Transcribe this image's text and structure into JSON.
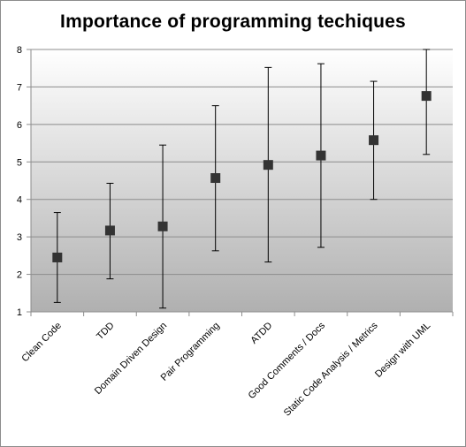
{
  "chart_data": {
    "type": "scatter",
    "title": "Importance of programming techiques",
    "xlabel": "",
    "ylabel": "",
    "categories": [
      "Clean Code",
      "TDD",
      "Domain Driven Design",
      "Pair Programming",
      "ATDD",
      "Good Comments  / Docs",
      "Static Code Analysis / Metrics",
      "Design with UML"
    ],
    "series": [
      {
        "values": [
          2.45,
          3.17,
          3.28,
          4.57,
          4.92,
          5.17,
          5.58,
          6.76
        ],
        "error_low": [
          1.25,
          1.88,
          1.1,
          2.63,
          2.33,
          2.72,
          4.0,
          5.2
        ],
        "error_high": [
          3.65,
          4.43,
          5.45,
          6.5,
          7.52,
          7.62,
          7.15,
          8.0
        ]
      }
    ],
    "ylim": [
      1,
      8
    ],
    "yticks": [
      "1",
      "2",
      "3",
      "4",
      "5",
      "6",
      "7",
      "8"
    ],
    "grid": true,
    "legend": "none",
    "marker": "square",
    "colors": {
      "marker": "#333333",
      "errorbar": "#000000",
      "gridline": "#8c8c8c",
      "plot_bg_top": "#ffffff",
      "plot_bg_bottom": "#b0b0b0"
    }
  }
}
